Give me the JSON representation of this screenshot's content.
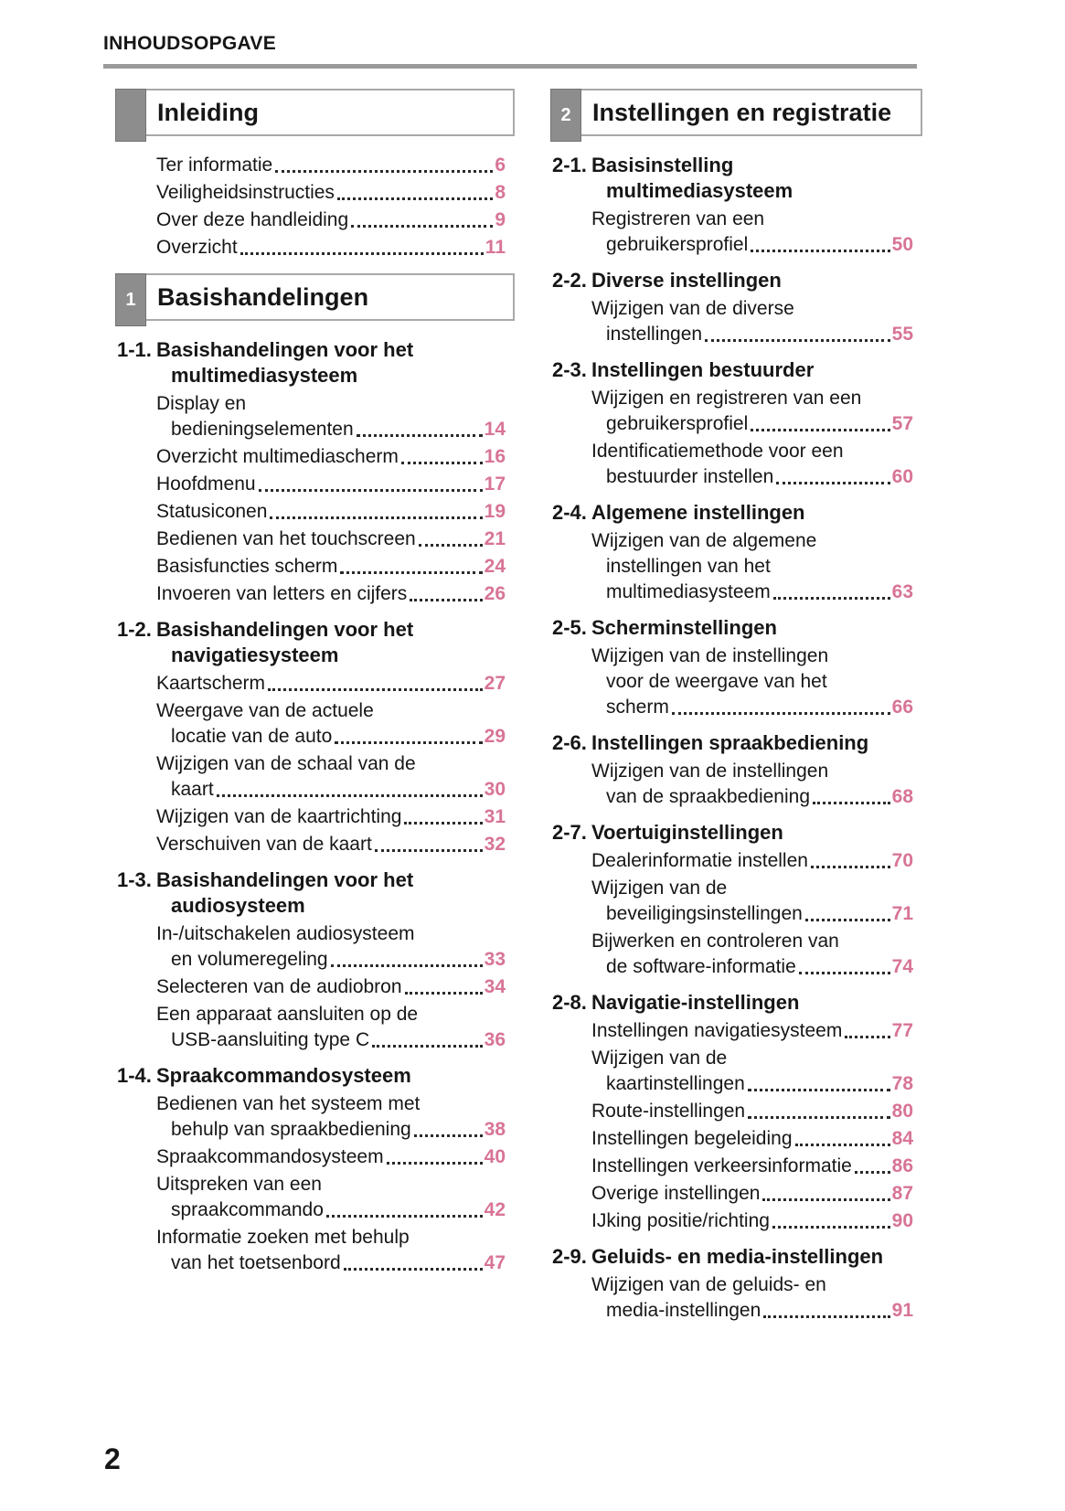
{
  "header": {
    "title": "INHOUDSOPGAVE"
  },
  "footer": {
    "page_number": "2"
  },
  "colors": {
    "page_number_pink": "#d87496",
    "chapter_tab_gray": "#8d8d8d",
    "box_border_gray": "#a9a9a9",
    "divider_gray": "#9b9b9b",
    "text_black": "#161616"
  },
  "columns": [
    {
      "name": "left",
      "blocks": [
        {
          "chapter_tab": "",
          "chapter_title": "Inleiding",
          "sections": [
            {
              "number": "",
              "title_lines": [],
              "entries": [
                {
                  "lines": [
                    "Ter informatie"
                  ],
                  "page": "6"
                },
                {
                  "lines": [
                    "Veiligheidsinstructies"
                  ],
                  "page": "8"
                },
                {
                  "lines": [
                    "Over deze handleiding"
                  ],
                  "page": "9"
                },
                {
                  "lines": [
                    "Overzicht"
                  ],
                  "page": "11"
                }
              ]
            }
          ]
        },
        {
          "chapter_tab": "1",
          "chapter_title": "Basishandelingen",
          "sections": [
            {
              "number": "1-1.",
              "title_lines": [
                "Basishandelingen voor het",
                "multimediasysteem"
              ],
              "entries": [
                {
                  "lines": [
                    "Display en",
                    "bedieningselementen"
                  ],
                  "page": "14"
                },
                {
                  "lines": [
                    "Overzicht multimediascherm"
                  ],
                  "page": "16"
                },
                {
                  "lines": [
                    "Hoofdmenu"
                  ],
                  "page": "17"
                },
                {
                  "lines": [
                    "Statusiconen"
                  ],
                  "page": "19"
                },
                {
                  "lines": [
                    "Bedienen van het touchscreen"
                  ],
                  "page": "21"
                },
                {
                  "lines": [
                    "Basisfuncties scherm"
                  ],
                  "page": "24"
                },
                {
                  "lines": [
                    "Invoeren van letters en cijfers"
                  ],
                  "page": "26"
                }
              ]
            },
            {
              "number": "1-2.",
              "title_lines": [
                "Basishandelingen voor het",
                "navigatiesysteem"
              ],
              "entries": [
                {
                  "lines": [
                    "Kaartscherm"
                  ],
                  "page": "27"
                },
                {
                  "lines": [
                    "Weergave van de actuele",
                    "locatie van de auto"
                  ],
                  "page": "29"
                },
                {
                  "lines": [
                    "Wijzigen van de schaal van de",
                    "kaart"
                  ],
                  "page": "30"
                },
                {
                  "lines": [
                    "Wijzigen van de kaartrichting"
                  ],
                  "page": "31"
                },
                {
                  "lines": [
                    "Verschuiven van de kaart"
                  ],
                  "page": "32"
                }
              ]
            },
            {
              "number": "1-3.",
              "title_lines": [
                "Basishandelingen voor het",
                "audiosysteem"
              ],
              "entries": [
                {
                  "lines": [
                    "In-/uitschakelen audiosysteem",
                    "en volumeregeling"
                  ],
                  "page": "33"
                },
                {
                  "lines": [
                    "Selecteren van de audiobron"
                  ],
                  "page": "34"
                },
                {
                  "lines": [
                    "Een apparaat aansluiten op de",
                    "USB-aansluiting type C"
                  ],
                  "page": "36"
                }
              ]
            },
            {
              "number": "1-4.",
              "title_lines": [
                "Spraakcommandosysteem"
              ],
              "entries": [
                {
                  "lines": [
                    "Bedienen van het systeem met",
                    "behulp van spraakbediening"
                  ],
                  "page": "38"
                },
                {
                  "lines": [
                    "Spraakcommandosysteem"
                  ],
                  "page": "40"
                },
                {
                  "lines": [
                    "Uitspreken van een",
                    "spraakcommando"
                  ],
                  "page": "42"
                },
                {
                  "lines": [
                    "Informatie zoeken met behulp",
                    "van het toetsenbord"
                  ],
                  "page": "47"
                }
              ]
            }
          ]
        }
      ]
    },
    {
      "name": "right",
      "blocks": [
        {
          "chapter_tab": "2",
          "chapter_title": "Instellingen en registratie",
          "sections": [
            {
              "number": "2-1.",
              "title_lines": [
                "Basisinstelling",
                "multimediasysteem"
              ],
              "entries": [
                {
                  "lines": [
                    "Registreren van een",
                    "gebruikersprofiel"
                  ],
                  "page": "50"
                }
              ]
            },
            {
              "number": "2-2.",
              "title_lines": [
                "Diverse instellingen"
              ],
              "entries": [
                {
                  "lines": [
                    "Wijzigen van de diverse",
                    "instellingen"
                  ],
                  "page": "55"
                }
              ]
            },
            {
              "number": "2-3.",
              "title_lines": [
                "Instellingen bestuurder"
              ],
              "entries": [
                {
                  "lines": [
                    "Wijzigen en registreren van een",
                    "gebruikersprofiel"
                  ],
                  "page": "57"
                },
                {
                  "lines": [
                    "Identificatiemethode voor een",
                    "bestuurder instellen"
                  ],
                  "page": "60"
                }
              ]
            },
            {
              "number": "2-4.",
              "title_lines": [
                "Algemene instellingen"
              ],
              "entries": [
                {
                  "lines": [
                    "Wijzigen van de algemene",
                    "instellingen van het",
                    "multimediasysteem"
                  ],
                  "page": "63"
                }
              ]
            },
            {
              "number": "2-5.",
              "title_lines": [
                "Scherminstellingen"
              ],
              "entries": [
                {
                  "lines": [
                    "Wijzigen van de instellingen",
                    "voor de weergave van het",
                    "scherm"
                  ],
                  "page": "66"
                }
              ]
            },
            {
              "number": "2-6.",
              "title_lines": [
                "Instellingen spraakbediening"
              ],
              "entries": [
                {
                  "lines": [
                    "Wijzigen van de instellingen",
                    "van de spraakbediening"
                  ],
                  "page": "68"
                }
              ]
            },
            {
              "number": "2-7.",
              "title_lines": [
                "Voertuiginstellingen"
              ],
              "entries": [
                {
                  "lines": [
                    "Dealerinformatie instellen"
                  ],
                  "page": "70"
                },
                {
                  "lines": [
                    "Wijzigen van de",
                    "beveiligingsinstellingen"
                  ],
                  "page": "71"
                },
                {
                  "lines": [
                    "Bijwerken en controleren van",
                    "de software-informatie"
                  ],
                  "page": "74"
                }
              ]
            },
            {
              "number": "2-8.",
              "title_lines": [
                "Navigatie-instellingen"
              ],
              "entries": [
                {
                  "lines": [
                    "Instellingen navigatiesysteem"
                  ],
                  "page": "77"
                },
                {
                  "lines": [
                    "Wijzigen van de",
                    "kaartinstellingen"
                  ],
                  "page": "78"
                },
                {
                  "lines": [
                    "Route-instellingen"
                  ],
                  "page": "80"
                },
                {
                  "lines": [
                    "Instellingen begeleiding"
                  ],
                  "page": "84"
                },
                {
                  "lines": [
                    "Instellingen verkeersinformatie"
                  ],
                  "page": "86"
                },
                {
                  "lines": [
                    "Overige instellingen"
                  ],
                  "page": "87"
                },
                {
                  "lines": [
                    "IJking positie/richting"
                  ],
                  "page": "90"
                }
              ]
            },
            {
              "number": "2-9.",
              "title_lines": [
                "Geluids- en media-instellingen"
              ],
              "entries": [
                {
                  "lines": [
                    "Wijzigen van de geluids- en",
                    "media-instellingen"
                  ],
                  "page": "91"
                }
              ]
            }
          ]
        }
      ]
    }
  ]
}
